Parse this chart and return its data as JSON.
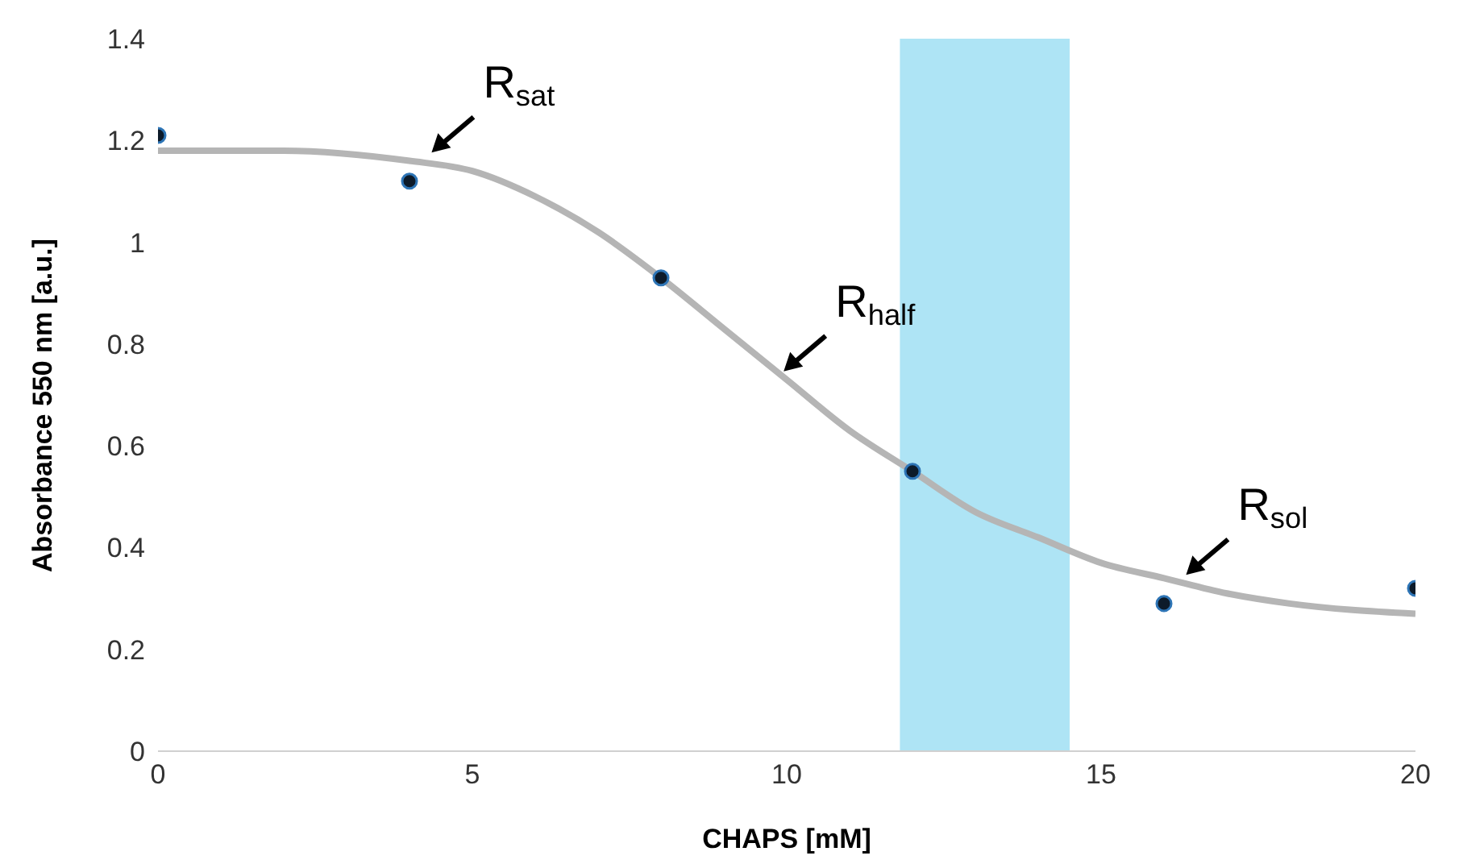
{
  "chart_data": {
    "type": "scatter",
    "xlabel": "CHAPS [mM]",
    "ylabel": "Absorbance 550 nm [a.u.]",
    "series": [
      {
        "marker": "circle",
        "color": "#0d1b2a",
        "x": [
          0,
          4,
          8,
          12,
          16,
          20
        ],
        "values": [
          1.21,
          1.12,
          0.93,
          0.55,
          0.29,
          0.32
        ]
      },
      {
        "type": "line",
        "marker": "none",
        "color": "#b5b5b5",
        "x": [
          0,
          2,
          4,
          5,
          6,
          7,
          8,
          9,
          10,
          11,
          12,
          13,
          14,
          15,
          16,
          17,
          18,
          20
        ],
        "values": [
          1.18,
          1.18,
          1.16,
          1.14,
          1.09,
          1.02,
          0.93,
          0.83,
          0.73,
          0.63,
          0.55,
          0.47,
          0.42,
          0.37,
          0.34,
          0.31,
          0.29,
          0.27
        ]
      }
    ],
    "xlim": [
      0,
      20
    ],
    "xticks": [
      0,
      5,
      10,
      15,
      20
    ],
    "ylim": [
      0,
      1.4
    ],
    "yticks": [
      0,
      0.2,
      0.4,
      0.6,
      0.8,
      1,
      1.2,
      1.4
    ],
    "bands": [
      {
        "axis": "x",
        "from": 11.8,
        "to": 14.5,
        "color": "#aee4f5"
      }
    ],
    "annotations": [
      {
        "text": "R$_{sat}$",
        "x": 4.3,
        "y": 1.17
      },
      {
        "text": "R$_{half}$",
        "x": 9.9,
        "y": 0.74
      },
      {
        "text": "R$_{sol}$",
        "x": 16.3,
        "y": 0.34
      }
    ],
    "line_style": "solid",
    "grid": false
  }
}
